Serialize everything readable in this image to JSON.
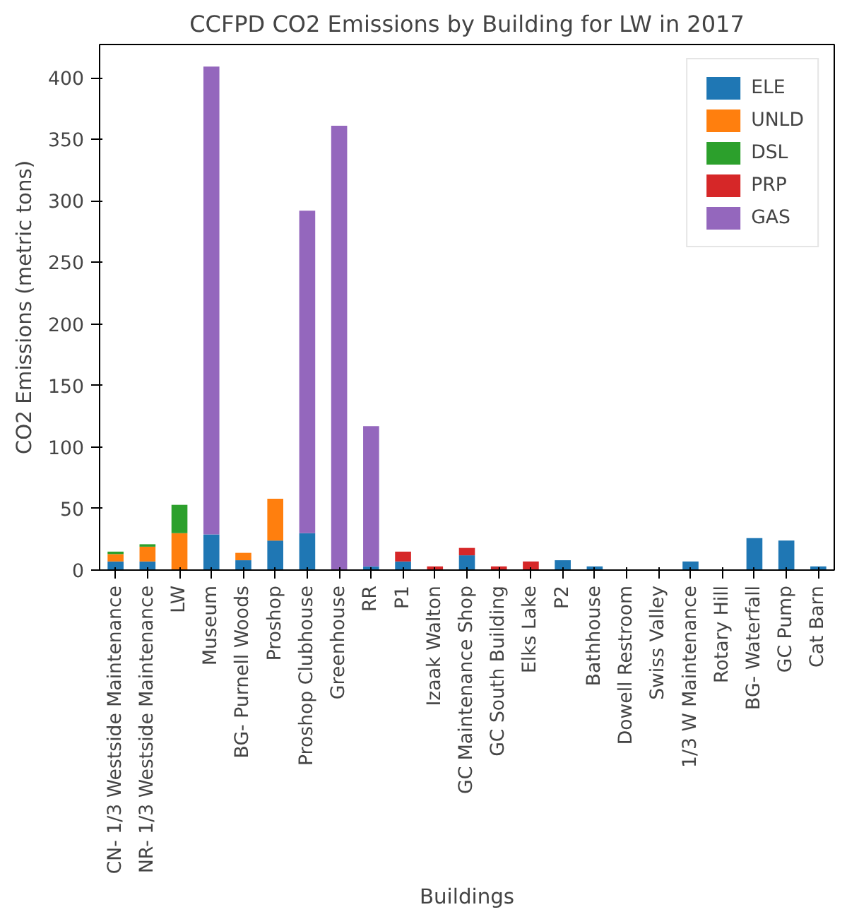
{
  "chart_data": {
    "type": "bar",
    "title": "CCFPD CO2 Emissions by Building for LW in 2017",
    "xlabel": "Buildings",
    "ylabel": "CO2 Emissions (metric tons)",
    "categories": [
      "CN- 1/3 Westside Maintenance",
      "NR- 1/3 Westside Maintenance",
      "LW",
      "Museum",
      "BG- Purnell Woods",
      "Proshop",
      "Proshop Clubhouse",
      "Greenhouse",
      "RR",
      "P1",
      "Izaak Walton",
      "GC Maintenance Shop",
      "GC South Building",
      "Elks Lake",
      "P2",
      "Bathhouse",
      "Dowell Restroom",
      "Swiss Valley",
      "1/3 W Maintenance",
      "Rotary Hill",
      "BG- Waterfall",
      "GC Pump",
      "Cat Barn"
    ],
    "stacked": true,
    "series": [
      {
        "name": "ELE",
        "color": "#1f77b4",
        "values": [
          7,
          7,
          0,
          29,
          8,
          24,
          30,
          0,
          3,
          7,
          0,
          12,
          0,
          0,
          8,
          3,
          0,
          0,
          7,
          0,
          26,
          24,
          3
        ]
      },
      {
        "name": "UNLD",
        "color": "#ff7f0e",
        "values": [
          6,
          12,
          30,
          0,
          6,
          34,
          0,
          0,
          0,
          0,
          0,
          0,
          0,
          0,
          0,
          0,
          0,
          0,
          0,
          0,
          0,
          0,
          0
        ]
      },
      {
        "name": "DSL",
        "color": "#2ca02c",
        "values": [
          2,
          2,
          23,
          0,
          0,
          0,
          0,
          0,
          0,
          0,
          0,
          0,
          0,
          0,
          0,
          0,
          0,
          0,
          0,
          0,
          0,
          0,
          0
        ]
      },
      {
        "name": "PRP",
        "color": "#d62728",
        "values": [
          0,
          0,
          0,
          0,
          0,
          0,
          0,
          0,
          0,
          8,
          3,
          6,
          3,
          7,
          0,
          0,
          0,
          0,
          0,
          0,
          0,
          0,
          0
        ]
      },
      {
        "name": "GAS",
        "color": "#9467bd",
        "values": [
          0,
          0,
          0,
          380,
          0,
          0,
          262,
          361,
          114,
          0,
          0,
          0,
          0,
          0,
          0,
          0,
          0,
          0,
          0,
          0,
          0,
          0,
          0
        ]
      }
    ],
    "ylim": [
      0,
      427
    ],
    "yticks": [
      0,
      50,
      100,
      150,
      200,
      250,
      300,
      350,
      400
    ],
    "grid": false,
    "legend": "top right"
  }
}
